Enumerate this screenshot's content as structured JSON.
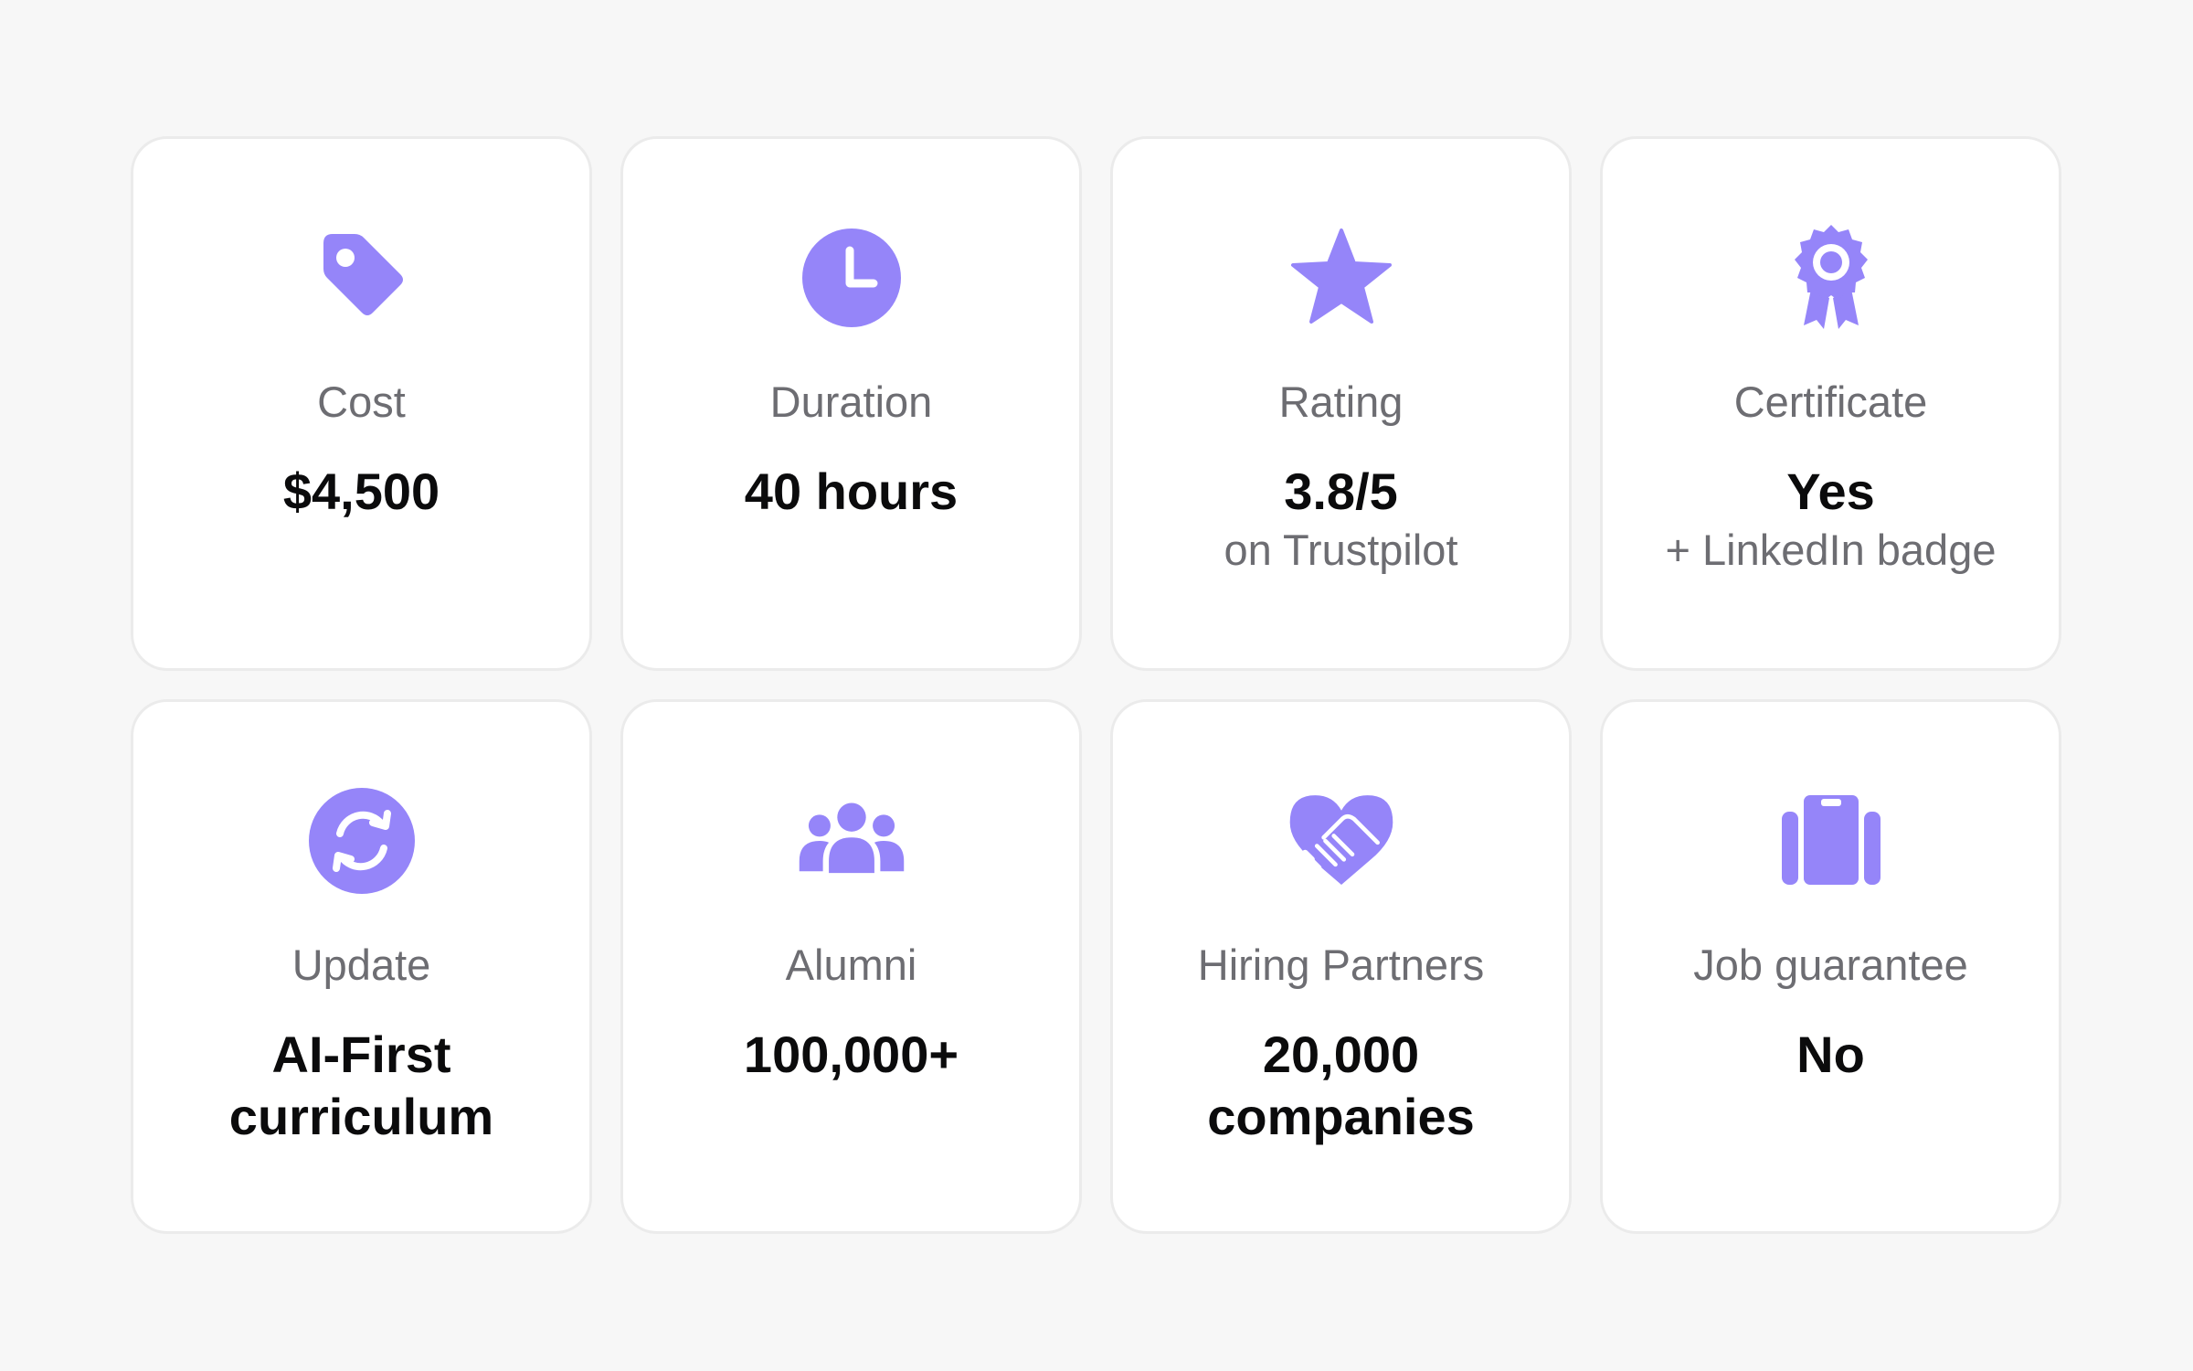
{
  "theme": {
    "accent": "#9585f9",
    "card_bg": "#ffffff",
    "page_bg": "#f7f7f7"
  },
  "cards": [
    {
      "icon": "price-tag-icon",
      "label": "Cost",
      "value": "$4,500",
      "sub": ""
    },
    {
      "icon": "clock-icon",
      "label": "Duration",
      "value": "40 hours",
      "sub": ""
    },
    {
      "icon": "star-icon",
      "label": "Rating",
      "value": "3.8/5",
      "sub": "on Trustpilot"
    },
    {
      "icon": "award-ribbon-icon",
      "label": "Certificate",
      "value": "Yes",
      "sub": "+ LinkedIn badge"
    },
    {
      "icon": "refresh-icon",
      "label": "Update",
      "value": "AI-First\ncurriculum",
      "sub": ""
    },
    {
      "icon": "people-group-icon",
      "label": "Alumni",
      "value": "100,000+",
      "sub": ""
    },
    {
      "icon": "handshake-heart-icon",
      "label": "Hiring Partners",
      "value": "20,000\ncompanies",
      "sub": ""
    },
    {
      "icon": "briefcase-icon",
      "label": "Job guarantee",
      "value": "No",
      "sub": ""
    }
  ]
}
